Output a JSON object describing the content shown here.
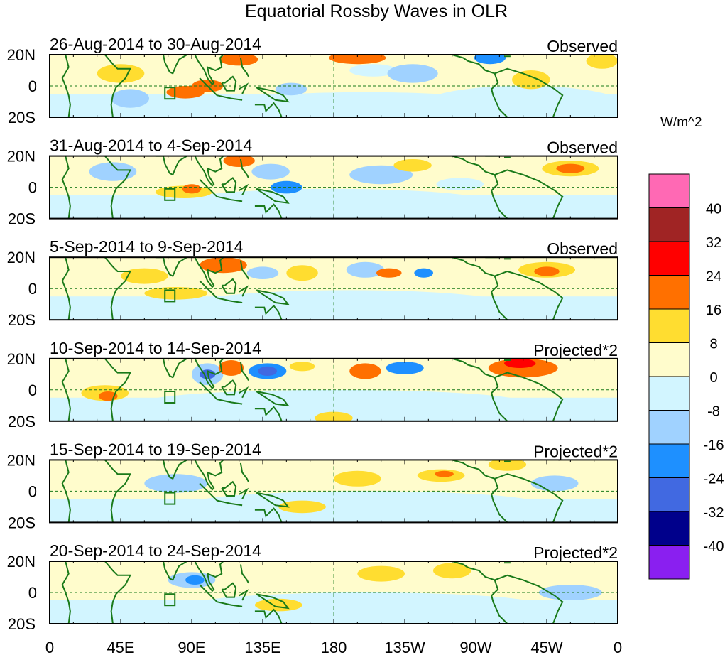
{
  "chart_data": {
    "type": "heatmap",
    "title": "Equatorial Rossby Waves in OLR",
    "units": "W/m^2",
    "x_ticks": [
      "0",
      "45E",
      "90E",
      "135E",
      "180",
      "135W",
      "90W",
      "45W",
      "0"
    ],
    "y_ticks": [
      "20N",
      "0",
      "20S"
    ],
    "lon_range": [
      0,
      360
    ],
    "lat_range": [
      -20,
      20
    ],
    "colorbar": {
      "levels": [
        "-40",
        "-32",
        "-24",
        "-16",
        "-8",
        "0",
        "8",
        "16",
        "24",
        "32",
        "40"
      ],
      "colors": [
        "#8a1ff0",
        "#00008b",
        "#4169e1",
        "#1e90ff",
        "#a0d2ff",
        "#d2f5ff",
        "#fffccc",
        "#ffdd30",
        "#ff7000",
        "#ff0000",
        "#a02424",
        "#ff69b4"
      ]
    },
    "panels": [
      {
        "dates": "26-Aug-2014 to 30-Aug-2014",
        "type": "Observed",
        "anomalies": [
          {
            "lon": 200,
            "lat": -12,
            "rx": 90,
            "ry": 8,
            "v": -4
          },
          {
            "lon": 300,
            "lat": -10,
            "rx": 60,
            "ry": 10,
            "v": -4
          },
          {
            "lon": 45,
            "lat": 8,
            "rx": 15,
            "ry": 6,
            "v": 10
          },
          {
            "lon": 51,
            "lat": -8,
            "rx": 8,
            "ry": 4,
            "v": -20
          },
          {
            "lon": 51,
            "lat": -8,
            "rx": 12,
            "ry": 6,
            "v": -10
          },
          {
            "lon": 86,
            "lat": -4,
            "rx": 12,
            "ry": 4,
            "v": 20
          },
          {
            "lon": 100,
            "lat": 0,
            "rx": 10,
            "ry": 4,
            "v": 18
          },
          {
            "lon": 120,
            "lat": 17,
            "rx": 12,
            "ry": 4,
            "v": 20
          },
          {
            "lon": 153,
            "lat": -2,
            "rx": 10,
            "ry": 4,
            "v": -14
          },
          {
            "lon": 195,
            "lat": 18,
            "rx": 18,
            "ry": 4,
            "v": 18
          },
          {
            "lon": 205,
            "lat": 10,
            "rx": 15,
            "ry": 4,
            "v": -4
          },
          {
            "lon": 230,
            "lat": 8,
            "rx": 8,
            "ry": 3,
            "v": -20
          },
          {
            "lon": 230,
            "lat": 8,
            "rx": 16,
            "ry": 6,
            "v": -10
          },
          {
            "lon": 279,
            "lat": 18,
            "rx": 10,
            "ry": 4,
            "v": -20
          },
          {
            "lon": 305,
            "lat": 4,
            "rx": 12,
            "ry": 6,
            "v": 10
          },
          {
            "lon": 350,
            "lat": 16,
            "rx": 10,
            "ry": 5,
            "v": 10
          }
        ]
      },
      {
        "dates": "31-Aug-2014 to 4-Sep-2014",
        "type": "Observed",
        "anomalies": [
          {
            "lon": 180,
            "lat": -10,
            "rx": 100,
            "ry": 9,
            "v": -4
          },
          {
            "lon": 40,
            "lat": 10,
            "rx": 15,
            "ry": 6,
            "v": -10
          },
          {
            "lon": 85,
            "lat": -3,
            "rx": 18,
            "ry": 4,
            "v": 12
          },
          {
            "lon": 90,
            "lat": -1,
            "rx": 6,
            "ry": 3,
            "v": 20
          },
          {
            "lon": 120,
            "lat": 17,
            "rx": 10,
            "ry": 4,
            "v": 20
          },
          {
            "lon": 140,
            "lat": 10,
            "rx": 12,
            "ry": 5,
            "v": -10
          },
          {
            "lon": 150,
            "lat": 0,
            "rx": 10,
            "ry": 4,
            "v": -20
          },
          {
            "lon": 210,
            "lat": 8,
            "rx": 20,
            "ry": 6,
            "v": -10
          },
          {
            "lon": 230,
            "lat": 14,
            "rx": 12,
            "ry": 4,
            "v": 12
          },
          {
            "lon": 260,
            "lat": 2,
            "rx": 15,
            "ry": 4,
            "v": -4
          },
          {
            "lon": 330,
            "lat": 12,
            "rx": 18,
            "ry": 5,
            "v": 12
          },
          {
            "lon": 330,
            "lat": 12,
            "rx": 9,
            "ry": 3,
            "v": 20
          }
        ]
      },
      {
        "dates": "5-Sep-2014 to 9-Sep-2014",
        "type": "Observed",
        "anomalies": [
          {
            "lon": 190,
            "lat": -10,
            "rx": 100,
            "ry": 9,
            "v": -4
          },
          {
            "lon": 60,
            "lat": 8,
            "rx": 15,
            "ry": 5,
            "v": 10
          },
          {
            "lon": 80,
            "lat": -3,
            "rx": 20,
            "ry": 4,
            "v": 10
          },
          {
            "lon": 110,
            "lat": 15,
            "rx": 15,
            "ry": 5,
            "v": 18
          },
          {
            "lon": 135,
            "lat": 10,
            "rx": 10,
            "ry": 4,
            "v": -10
          },
          {
            "lon": 160,
            "lat": 10,
            "rx": 10,
            "ry": 5,
            "v": 10
          },
          {
            "lon": 200,
            "lat": 12,
            "rx": 12,
            "ry": 5,
            "v": -10
          },
          {
            "lon": 215,
            "lat": 10,
            "rx": 8,
            "ry": 3,
            "v": 18
          },
          {
            "lon": 237,
            "lat": 10,
            "rx": 6,
            "ry": 3,
            "v": -18
          },
          {
            "lon": 315,
            "lat": 12,
            "rx": 18,
            "ry": 5,
            "v": 14
          },
          {
            "lon": 315,
            "lat": 11,
            "rx": 8,
            "ry": 3,
            "v": 20
          }
        ]
      },
      {
        "dates": "10-Sep-2014 to 14-Sep-2014",
        "type": "Projected*2",
        "anomalies": [
          {
            "lon": 180,
            "lat": -8,
            "rx": 120,
            "ry": 8,
            "v": -4
          },
          {
            "lon": 35,
            "lat": -2,
            "rx": 15,
            "ry": 5,
            "v": 12
          },
          {
            "lon": 37,
            "lat": -4,
            "rx": 6,
            "ry": 3,
            "v": 20
          },
          {
            "lon": 100,
            "lat": 10,
            "rx": 10,
            "ry": 7,
            "v": -14
          },
          {
            "lon": 100,
            "lat": 10,
            "rx": 5,
            "ry": 3,
            "v": -26
          },
          {
            "lon": 115,
            "lat": 14,
            "rx": 8,
            "ry": 5,
            "v": 20
          },
          {
            "lon": 138,
            "lat": 12,
            "rx": 12,
            "ry": 5,
            "v": -18
          },
          {
            "lon": 138,
            "lat": 12,
            "rx": 6,
            "ry": 3,
            "v": -28
          },
          {
            "lon": 160,
            "lat": 15,
            "rx": 8,
            "ry": 3,
            "v": 10
          },
          {
            "lon": 200,
            "lat": 12,
            "rx": 10,
            "ry": 5,
            "v": 18
          },
          {
            "lon": 225,
            "lat": 14,
            "rx": 12,
            "ry": 4,
            "v": -18
          },
          {
            "lon": 180,
            "lat": -18,
            "rx": 12,
            "ry": 4,
            "v": 12
          },
          {
            "lon": 300,
            "lat": 14,
            "rx": 22,
            "ry": 6,
            "v": 20
          },
          {
            "lon": 298,
            "lat": 17,
            "rx": 10,
            "ry": 3,
            "v": 28
          }
        ]
      },
      {
        "dates": "15-Sep-2014 to 19-Sep-2014",
        "type": "Projected*2",
        "anomalies": [
          {
            "lon": 200,
            "lat": -8,
            "rx": 110,
            "ry": 8,
            "v": -4
          },
          {
            "lon": 80,
            "lat": 5,
            "rx": 20,
            "ry": 6,
            "v": -10
          },
          {
            "lon": 160,
            "lat": -10,
            "rx": 15,
            "ry": 4,
            "v": 12
          },
          {
            "lon": 195,
            "lat": 8,
            "rx": 15,
            "ry": 5,
            "v": 12
          },
          {
            "lon": 248,
            "lat": 10,
            "rx": 15,
            "ry": 4,
            "v": 12
          },
          {
            "lon": 250,
            "lat": 11,
            "rx": 6,
            "ry": 2,
            "v": 20
          },
          {
            "lon": 290,
            "lat": 17,
            "rx": 12,
            "ry": 4,
            "v": 12
          },
          {
            "lon": 320,
            "lat": 5,
            "rx": 15,
            "ry": 5,
            "v": -10
          }
        ]
      },
      {
        "dates": "20-Sep-2014 to 24-Sep-2014",
        "type": "Projected*2",
        "anomalies": [
          {
            "lon": 200,
            "lat": -8,
            "rx": 110,
            "ry": 8,
            "v": -4
          },
          {
            "lon": 90,
            "lat": 8,
            "rx": 15,
            "ry": 5,
            "v": -12
          },
          {
            "lon": 92,
            "lat": 8,
            "rx": 6,
            "ry": 3,
            "v": -20
          },
          {
            "lon": 145,
            "lat": -8,
            "rx": 15,
            "ry": 4,
            "v": 10
          },
          {
            "lon": 210,
            "lat": 12,
            "rx": 15,
            "ry": 5,
            "v": 12
          },
          {
            "lon": 255,
            "lat": 14,
            "rx": 12,
            "ry": 5,
            "v": 12
          },
          {
            "lon": 330,
            "lat": 0,
            "rx": 20,
            "ry": 5,
            "v": -10
          }
        ]
      }
    ]
  }
}
